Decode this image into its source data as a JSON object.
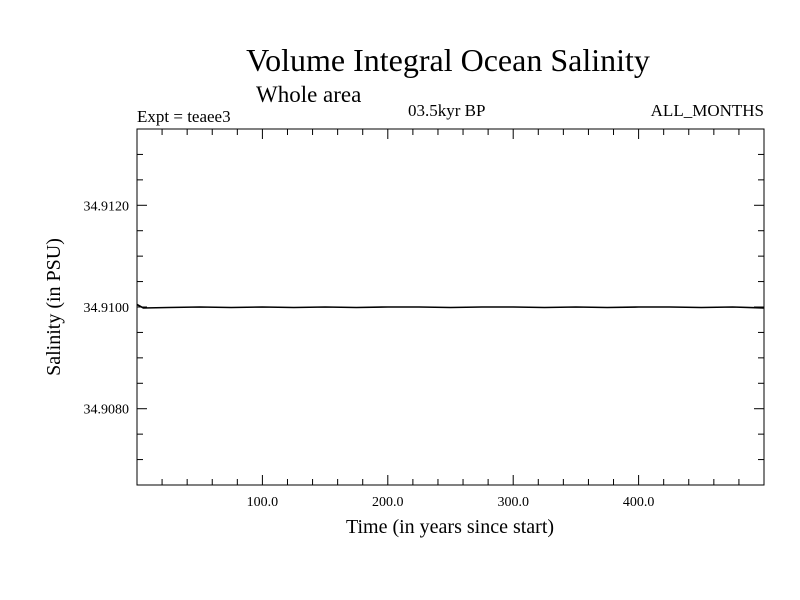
{
  "header": {
    "title": "Volume Integral Ocean Salinity",
    "subtitle": "Whole area",
    "experiment": "Expt = teaee3",
    "period": "03.5kyr BP",
    "months": "ALL_MONTHS"
  },
  "chart_data": {
    "type": "line",
    "title": "Volume Integral Ocean Salinity",
    "subtitle": "Whole area",
    "xlabel": "Time (in years since start)",
    "ylabel": "Salinity (in PSU)",
    "xlim": [
      0,
      500
    ],
    "ylim": [
      34.9065,
      34.9135
    ],
    "x_ticks": [
      100,
      200,
      300,
      400
    ],
    "x_tick_labels": [
      "100.0",
      "200.0",
      "300.0",
      "400.0"
    ],
    "y_ticks": [
      34.908,
      34.91,
      34.912
    ],
    "y_tick_labels": [
      "34.9080",
      "34.9100",
      "34.9120"
    ],
    "grid": false,
    "series": [
      {
        "name": "Salinity",
        "x": [
          0,
          5,
          25,
          50,
          75,
          100,
          125,
          150,
          175,
          200,
          225,
          250,
          275,
          300,
          325,
          350,
          375,
          400,
          425,
          450,
          475,
          500
        ],
        "values": [
          34.91005,
          34.90998,
          34.90999,
          34.91,
          34.90999,
          34.91,
          34.90999,
          34.91,
          34.90999,
          34.91,
          34.91,
          34.90999,
          34.91,
          34.91,
          34.90999,
          34.91,
          34.90999,
          34.91,
          34.91,
          34.90999,
          34.91,
          34.90998
        ]
      }
    ]
  }
}
